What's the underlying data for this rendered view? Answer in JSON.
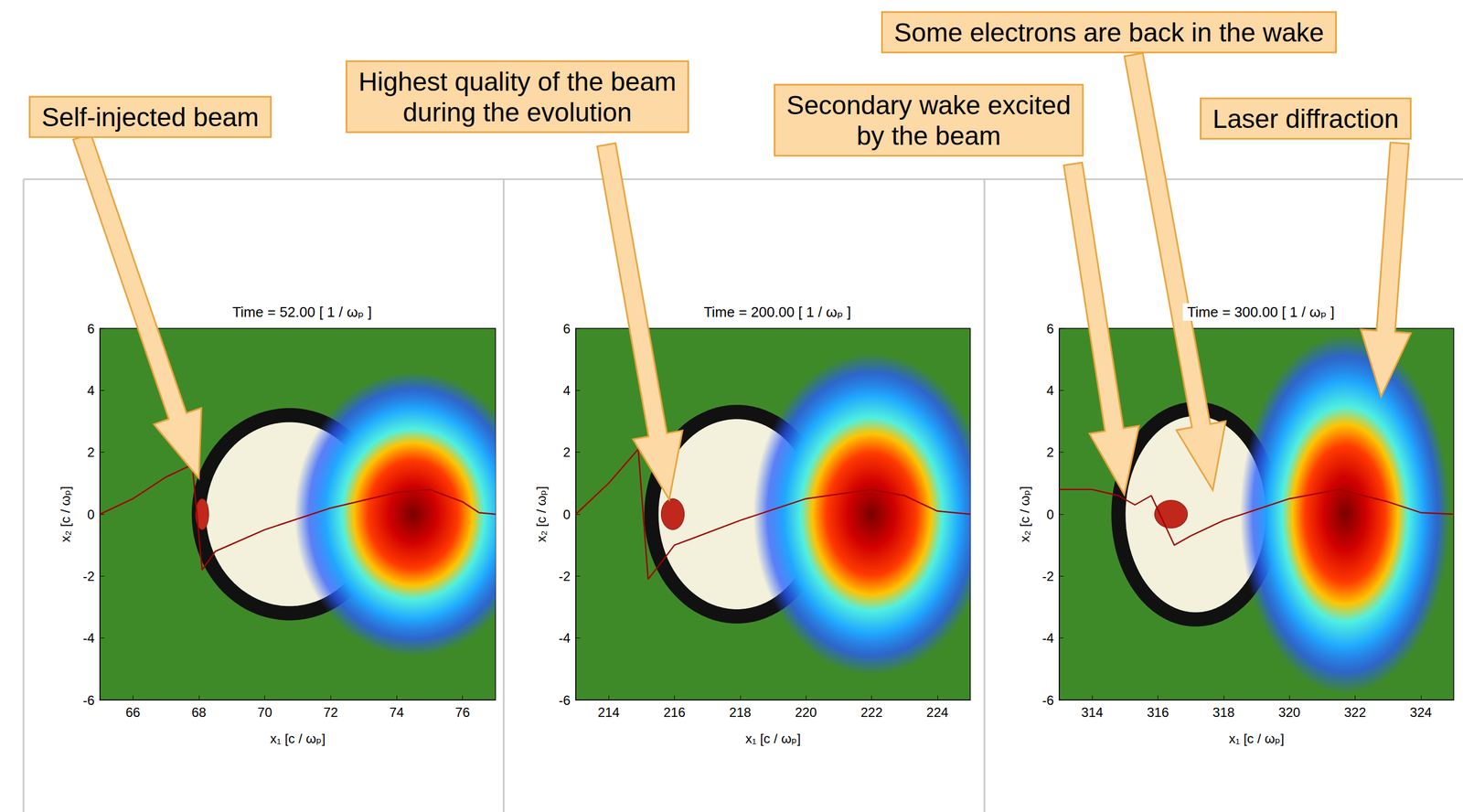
{
  "chart_data": [
    {
      "type": "density_map",
      "title": "Time = 52.00 [ 1 / ωₚ ]",
      "xlabel": "x₁ [c / ωₚ]",
      "ylabel": "x₂ [c / ωₚ]",
      "xlim": [
        65,
        77
      ],
      "xticks": [
        66,
        68,
        70,
        72,
        74,
        76
      ],
      "ylim": [
        -6,
        6
      ],
      "yticks": [
        -6,
        -4,
        -2,
        0,
        2,
        4,
        6
      ],
      "grid": false,
      "laser": {
        "x": 74.5,
        "y": 0,
        "rx": 3.6,
        "ry": 4.6
      },
      "bubble": {
        "back": 68.0,
        "front": 73.5,
        "half_width": 3.2
      },
      "beam": {
        "x": [
          67.9,
          68.3
        ],
        "half_width": 0.5
      },
      "lineout": {
        "color": "#a00000",
        "x": [
          65,
          66,
          67,
          67.8,
          68.1,
          68.5,
          70,
          72,
          74,
          75,
          76,
          76.5,
          77
        ],
        "values": [
          0,
          0.5,
          1.2,
          1.6,
          -1.8,
          -1.2,
          -0.5,
          0.2,
          0.7,
          0.8,
          0.4,
          0.05,
          0
        ]
      },
      "annotations": [
        {
          "lines": [
            "Self-injected beam"
          ]
        }
      ]
    },
    {
      "type": "density_map",
      "title": "Time = 200.00 [ 1 / ωₚ ]",
      "xlabel": "x₁ [c / ωₚ]",
      "ylabel": "x₂ [c / ωₚ]",
      "xlim": [
        213,
        225
      ],
      "xticks": [
        214,
        216,
        218,
        220,
        222,
        224
      ],
      "ylim": [
        -6,
        6
      ],
      "yticks": [
        -6,
        -4,
        -2,
        0,
        2,
        4,
        6
      ],
      "grid": false,
      "laser": {
        "x": 222,
        "y": 0,
        "rx": 3.6,
        "ry": 5.2
      },
      "bubble": {
        "back": 215.3,
        "front": 220.5,
        "half_width": 3.3
      },
      "beam": {
        "x": [
          215.6,
          216.3
        ],
        "half_width": 0.5
      },
      "lineout": {
        "color": "#a00000",
        "x": [
          213,
          214,
          214.9,
          215.2,
          215.5,
          216,
          218,
          220,
          222,
          223,
          224,
          225
        ],
        "values": [
          0,
          1,
          2.1,
          -2.1,
          -1.7,
          -1,
          -0.2,
          0.5,
          0.8,
          0.6,
          0.1,
          0
        ]
      },
      "annotations": [
        {
          "lines": [
            "Highest quality of the beam",
            "during the evolution"
          ]
        }
      ]
    },
    {
      "type": "density_map",
      "title": "Time = 300.00 [ 1 / ωₚ ]",
      "xlabel": "x₁ [c / ωₚ]",
      "ylabel": "x₂ [c / ωₚ]",
      "xlim": [
        313,
        325
      ],
      "xticks": [
        314,
        316,
        318,
        320,
        322,
        324
      ],
      "ylim": [
        -6,
        6
      ],
      "yticks": [
        -6,
        -4,
        -2,
        0,
        2,
        4,
        6
      ],
      "grid": false,
      "laser": {
        "x": 321.7,
        "y": 0,
        "rx": 3.2,
        "ry": 5.8
      },
      "bubble": {
        "back": 314.8,
        "front": 319.5,
        "half_width": 3.4
      },
      "beam": {
        "x": [
          315.9,
          316.9
        ],
        "half_width": 0.45
      },
      "lineout": {
        "color": "#a00000",
        "x": [
          313,
          314,
          314.8,
          315.3,
          315.8,
          316.5,
          317,
          318,
          320,
          321.5,
          323,
          324,
          325
        ],
        "values": [
          0.8,
          0.8,
          0.6,
          0.3,
          0.6,
          -1,
          -0.7,
          -0.2,
          0.5,
          0.8,
          0.4,
          0.05,
          0
        ]
      },
      "annotations": [
        {
          "lines": [
            "Secondary wake excited",
            "by the beam"
          ]
        },
        {
          "lines": [
            "Some electrons are back in the wake"
          ]
        },
        {
          "lines": [
            "Laser diffraction"
          ]
        }
      ]
    }
  ]
}
